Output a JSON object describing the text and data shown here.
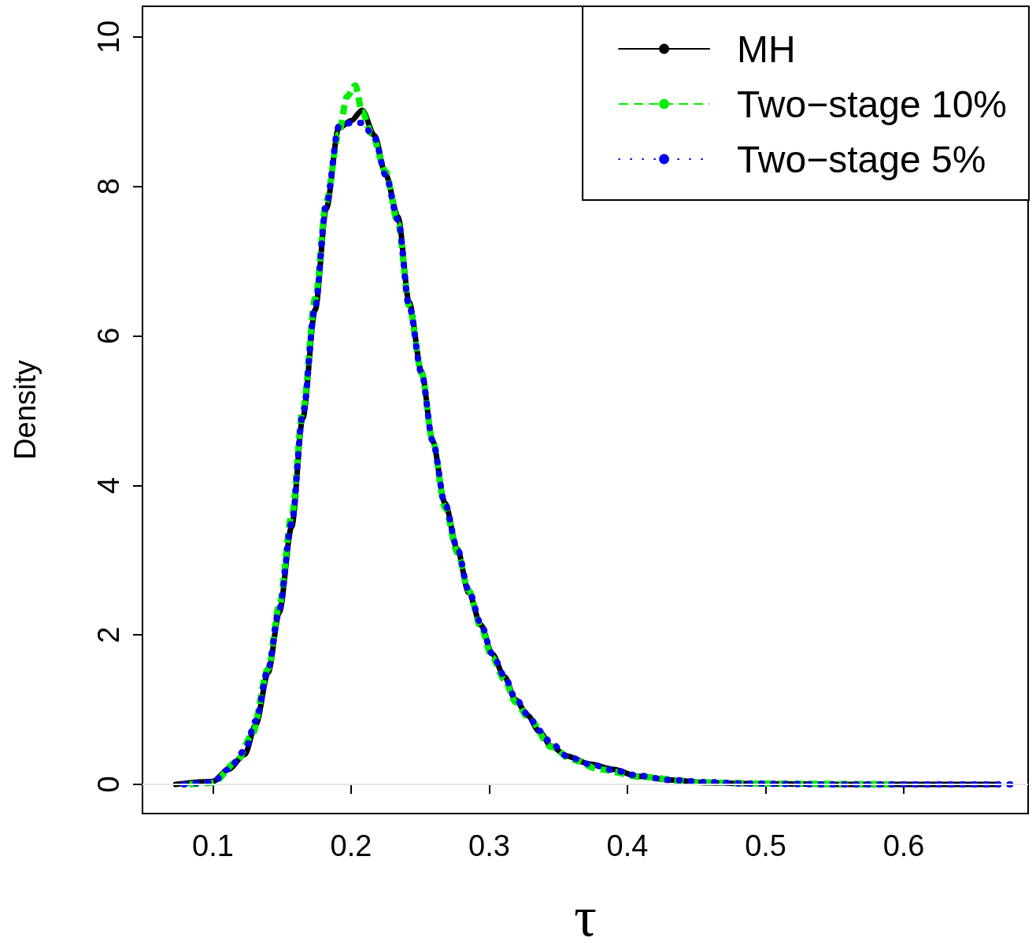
{
  "chart_data": {
    "type": "line",
    "xlabel": "τ",
    "ylabel": "Density",
    "xlim": [
      0.049,
      0.69
    ],
    "ylim": [
      -0.39,
      10.41
    ],
    "xticks": [
      0.1,
      0.2,
      0.3,
      0.4,
      0.5,
      0.6
    ],
    "yticks": [
      0,
      2,
      4,
      6,
      8,
      10
    ],
    "grid": false,
    "legend": "top right",
    "ref_lines": [
      {
        "axis": "y",
        "value": 0,
        "color": "#e6e6e6"
      }
    ],
    "series": [
      {
        "name": "MH",
        "color": "#000000",
        "line_style": "solid",
        "x": [
          0.073,
          0.1,
          0.111,
          0.123,
          0.131,
          0.14,
          0.148,
          0.157,
          0.165,
          0.174,
          0.182,
          0.191,
          0.2,
          0.208,
          0.217,
          0.225,
          0.234,
          0.242,
          0.251,
          0.259,
          0.268,
          0.277,
          0.285,
          0.294,
          0.302,
          0.311,
          0.319,
          0.328,
          0.336,
          0.345,
          0.356,
          0.373,
          0.39,
          0.407,
          0.43,
          0.459,
          0.487,
          0.55,
          0.668
        ],
        "values": [
          0,
          0.04,
          0.2,
          0.4,
          0.8,
          1.5,
          2.3,
          3.45,
          4.9,
          6.35,
          7.7,
          8.78,
          8.88,
          9.02,
          8.68,
          8.16,
          7.59,
          6.45,
          5.52,
          4.59,
          3.76,
          3.14,
          2.57,
          2.13,
          1.75,
          1.44,
          1.13,
          0.92,
          0.71,
          0.51,
          0.38,
          0.27,
          0.2,
          0.11,
          0.06,
          0.02,
          0.01,
          0,
          0
        ]
      },
      {
        "name": "Two−stage 10%",
        "color": "#00ee00",
        "line_style": "dashed",
        "x": [
          0.083,
          0.1,
          0.117,
          0.128,
          0.14,
          0.148,
          0.157,
          0.165,
          0.174,
          0.182,
          0.191,
          0.197,
          0.203,
          0.208,
          0.215,
          0.225,
          0.234,
          0.242,
          0.251,
          0.259,
          0.268,
          0.277,
          0.285,
          0.294,
          0.302,
          0.311,
          0.319,
          0.328,
          0.345,
          0.36,
          0.38,
          0.41,
          0.45,
          0.5,
          0.59
        ],
        "values": [
          0,
          0.02,
          0.3,
          0.65,
          1.55,
          2.4,
          3.6,
          5.0,
          6.5,
          7.8,
          8.7,
          9.2,
          9.35,
          9.0,
          8.7,
          8.2,
          7.5,
          6.4,
          5.5,
          4.6,
          3.7,
          3.1,
          2.6,
          2.1,
          1.7,
          1.4,
          1.1,
          0.9,
          0.5,
          0.33,
          0.2,
          0.1,
          0.03,
          0.01,
          0
        ]
      },
      {
        "name": "Two−stage 5%",
        "color": "#0000ee",
        "line_style": "dotted",
        "x": [
          0.079,
          0.1,
          0.111,
          0.123,
          0.131,
          0.14,
          0.148,
          0.157,
          0.165,
          0.174,
          0.182,
          0.191,
          0.2,
          0.208,
          0.217,
          0.225,
          0.234,
          0.242,
          0.251,
          0.259,
          0.268,
          0.277,
          0.285,
          0.294,
          0.302,
          0.311,
          0.319,
          0.328,
          0.336,
          0.345,
          0.356,
          0.373,
          0.39,
          0.407,
          0.43,
          0.459,
          0.487,
          0.55,
          0.68
        ],
        "values": [
          0,
          0.03,
          0.2,
          0.45,
          0.85,
          1.55,
          2.35,
          3.5,
          4.95,
          6.4,
          7.75,
          8.8,
          8.85,
          8.85,
          8.65,
          8.15,
          7.55,
          6.4,
          5.5,
          4.6,
          3.75,
          3.15,
          2.6,
          2.15,
          1.75,
          1.45,
          1.15,
          0.93,
          0.72,
          0.55,
          0.38,
          0.27,
          0.19,
          0.12,
          0.06,
          0.03,
          0.01,
          0,
          0
        ]
      }
    ]
  }
}
